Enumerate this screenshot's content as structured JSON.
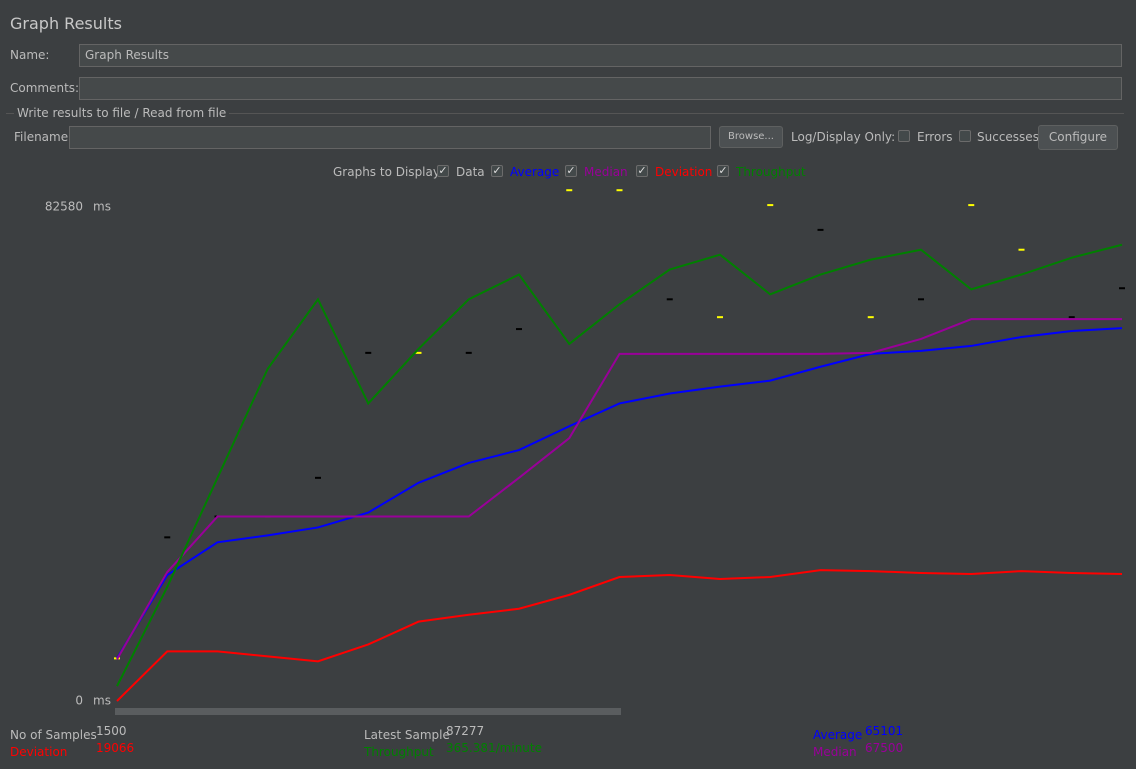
{
  "header": {
    "title": "Graph Results"
  },
  "form": {
    "name_label": "Name:",
    "name_value": "Graph Results",
    "comments_label": "Comments:",
    "file_group": "Write results to file / Read from file",
    "filename_label": "Filename",
    "browse": "Browse...",
    "log_display": "Log/Display Only:",
    "errors": {
      "label": "Errors",
      "checked": false
    },
    "successes": {
      "label": "Successes",
      "checked": false
    },
    "configure": "Configure",
    "graphs_label": "Graphs to Display"
  },
  "chart_data": {
    "type": "line",
    "y_unit": "ms",
    "ylim": [
      0,
      82580
    ],
    "yticks": [
      0,
      82580
    ],
    "series": [
      {
        "name": "Data",
        "color": "#000000",
        "show": true,
        "style": "points",
        "values": [
          7129,
          27357,
          30839,
          30839,
          37305,
          58196,
          58196,
          58196,
          62175,
          85387,
          85387,
          67149,
          64165,
          82900,
          78755,
          64165,
          67149,
          82900,
          75439,
          64165,
          69000
        ]
      },
      {
        "name": "Average",
        "color": "#0000ff",
        "show": true,
        "values": [
          7129,
          21057,
          26528,
          27689,
          29015,
          31502,
          36476,
          39792,
          41947,
          45927,
          49740,
          51398,
          52559,
          53553,
          55875,
          58030,
          58527,
          59356,
          60849,
          61843,
          62341
        ]
      },
      {
        "name": "Median",
        "color": "#990099",
        "show": true,
        "values": [
          6964,
          21554,
          30839,
          30839,
          30839,
          30839,
          30839,
          30839,
          37305,
          43937,
          58030,
          58030,
          58030,
          58030,
          58030,
          58196,
          60517,
          63833,
          63833,
          63833,
          63833
        ]
      },
      {
        "name": "Deviation",
        "color": "#ff0000",
        "show": true,
        "values": [
          0,
          8290,
          8290,
          7461,
          6632,
          9451,
          13264,
          14425,
          15419,
          17741,
          20725,
          21057,
          20393,
          20725,
          21886,
          21720,
          21388,
          21222,
          21720,
          21388,
          21222
        ]
      },
      {
        "name": "Throughput",
        "color": "#008000",
        "show": true,
        "values": [
          2487,
          19067,
          37305,
          55543,
          67149,
          49740,
          58859,
          67149,
          71294,
          59688,
          66320,
          72123,
          74610,
          67978,
          71294,
          73781,
          75439,
          68807,
          71294,
          74113,
          76268
        ]
      }
    ]
  },
  "stats": {
    "samples_label": "No of Samples",
    "samples": 1500,
    "deviation_label": "Deviation",
    "deviation": 19066,
    "latest_label": "Latest Sample",
    "latest": 87277,
    "throughput_label": "Throughput",
    "throughput": "365.381/minute",
    "average_label": "Average",
    "average": 65101,
    "median_label": "Median",
    "median": "67500"
  }
}
